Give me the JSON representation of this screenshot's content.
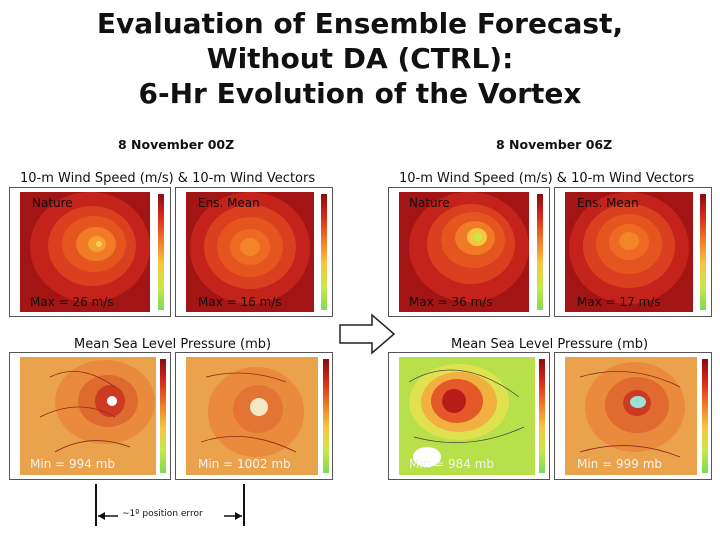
{
  "title": {
    "line1": "Evaluation of Ensemble Forecast,",
    "line2": "Without DA (CTRL):",
    "line3": "6-Hr Evolution of the Vortex"
  },
  "dates": {
    "left": "8 November 00Z",
    "right": "8 November 06Z"
  },
  "wind_section_label": "10-m Wind Speed (m/s) & 10-m Wind Vectors",
  "mslp_section_label": "Mean Sea Level Pressure (mb)",
  "panels": {
    "wind_00z_nature": {
      "label": "Nature",
      "value": "Max = 26 m/s"
    },
    "wind_00z_ens": {
      "label": "Ens. Mean",
      "value": "Max = 16 m/s"
    },
    "wind_06z_nature": {
      "label": "Nature",
      "value": "Max = 36 m/s"
    },
    "wind_06z_ens": {
      "label": "Ens. Mean",
      "value": "Max = 17 m/s"
    },
    "mslp_00z_nature": {
      "value": "Min = 994 mb"
    },
    "mslp_00z_ens": {
      "value": "Min = 1002 mb"
    },
    "mslp_06z_nature": {
      "value": "Min = 984 mb"
    },
    "mslp_06z_ens": {
      "value": "Min = 999 mb"
    }
  },
  "position_error_note": "~1º position error",
  "colors": {
    "wind_outer": "#c4231b",
    "wind_mid": "#e5551f",
    "wind_core": "#f6a02e",
    "mslp_outer": "#e9a24a",
    "mslp_nature_06z_bg": "#b7e04a"
  }
}
